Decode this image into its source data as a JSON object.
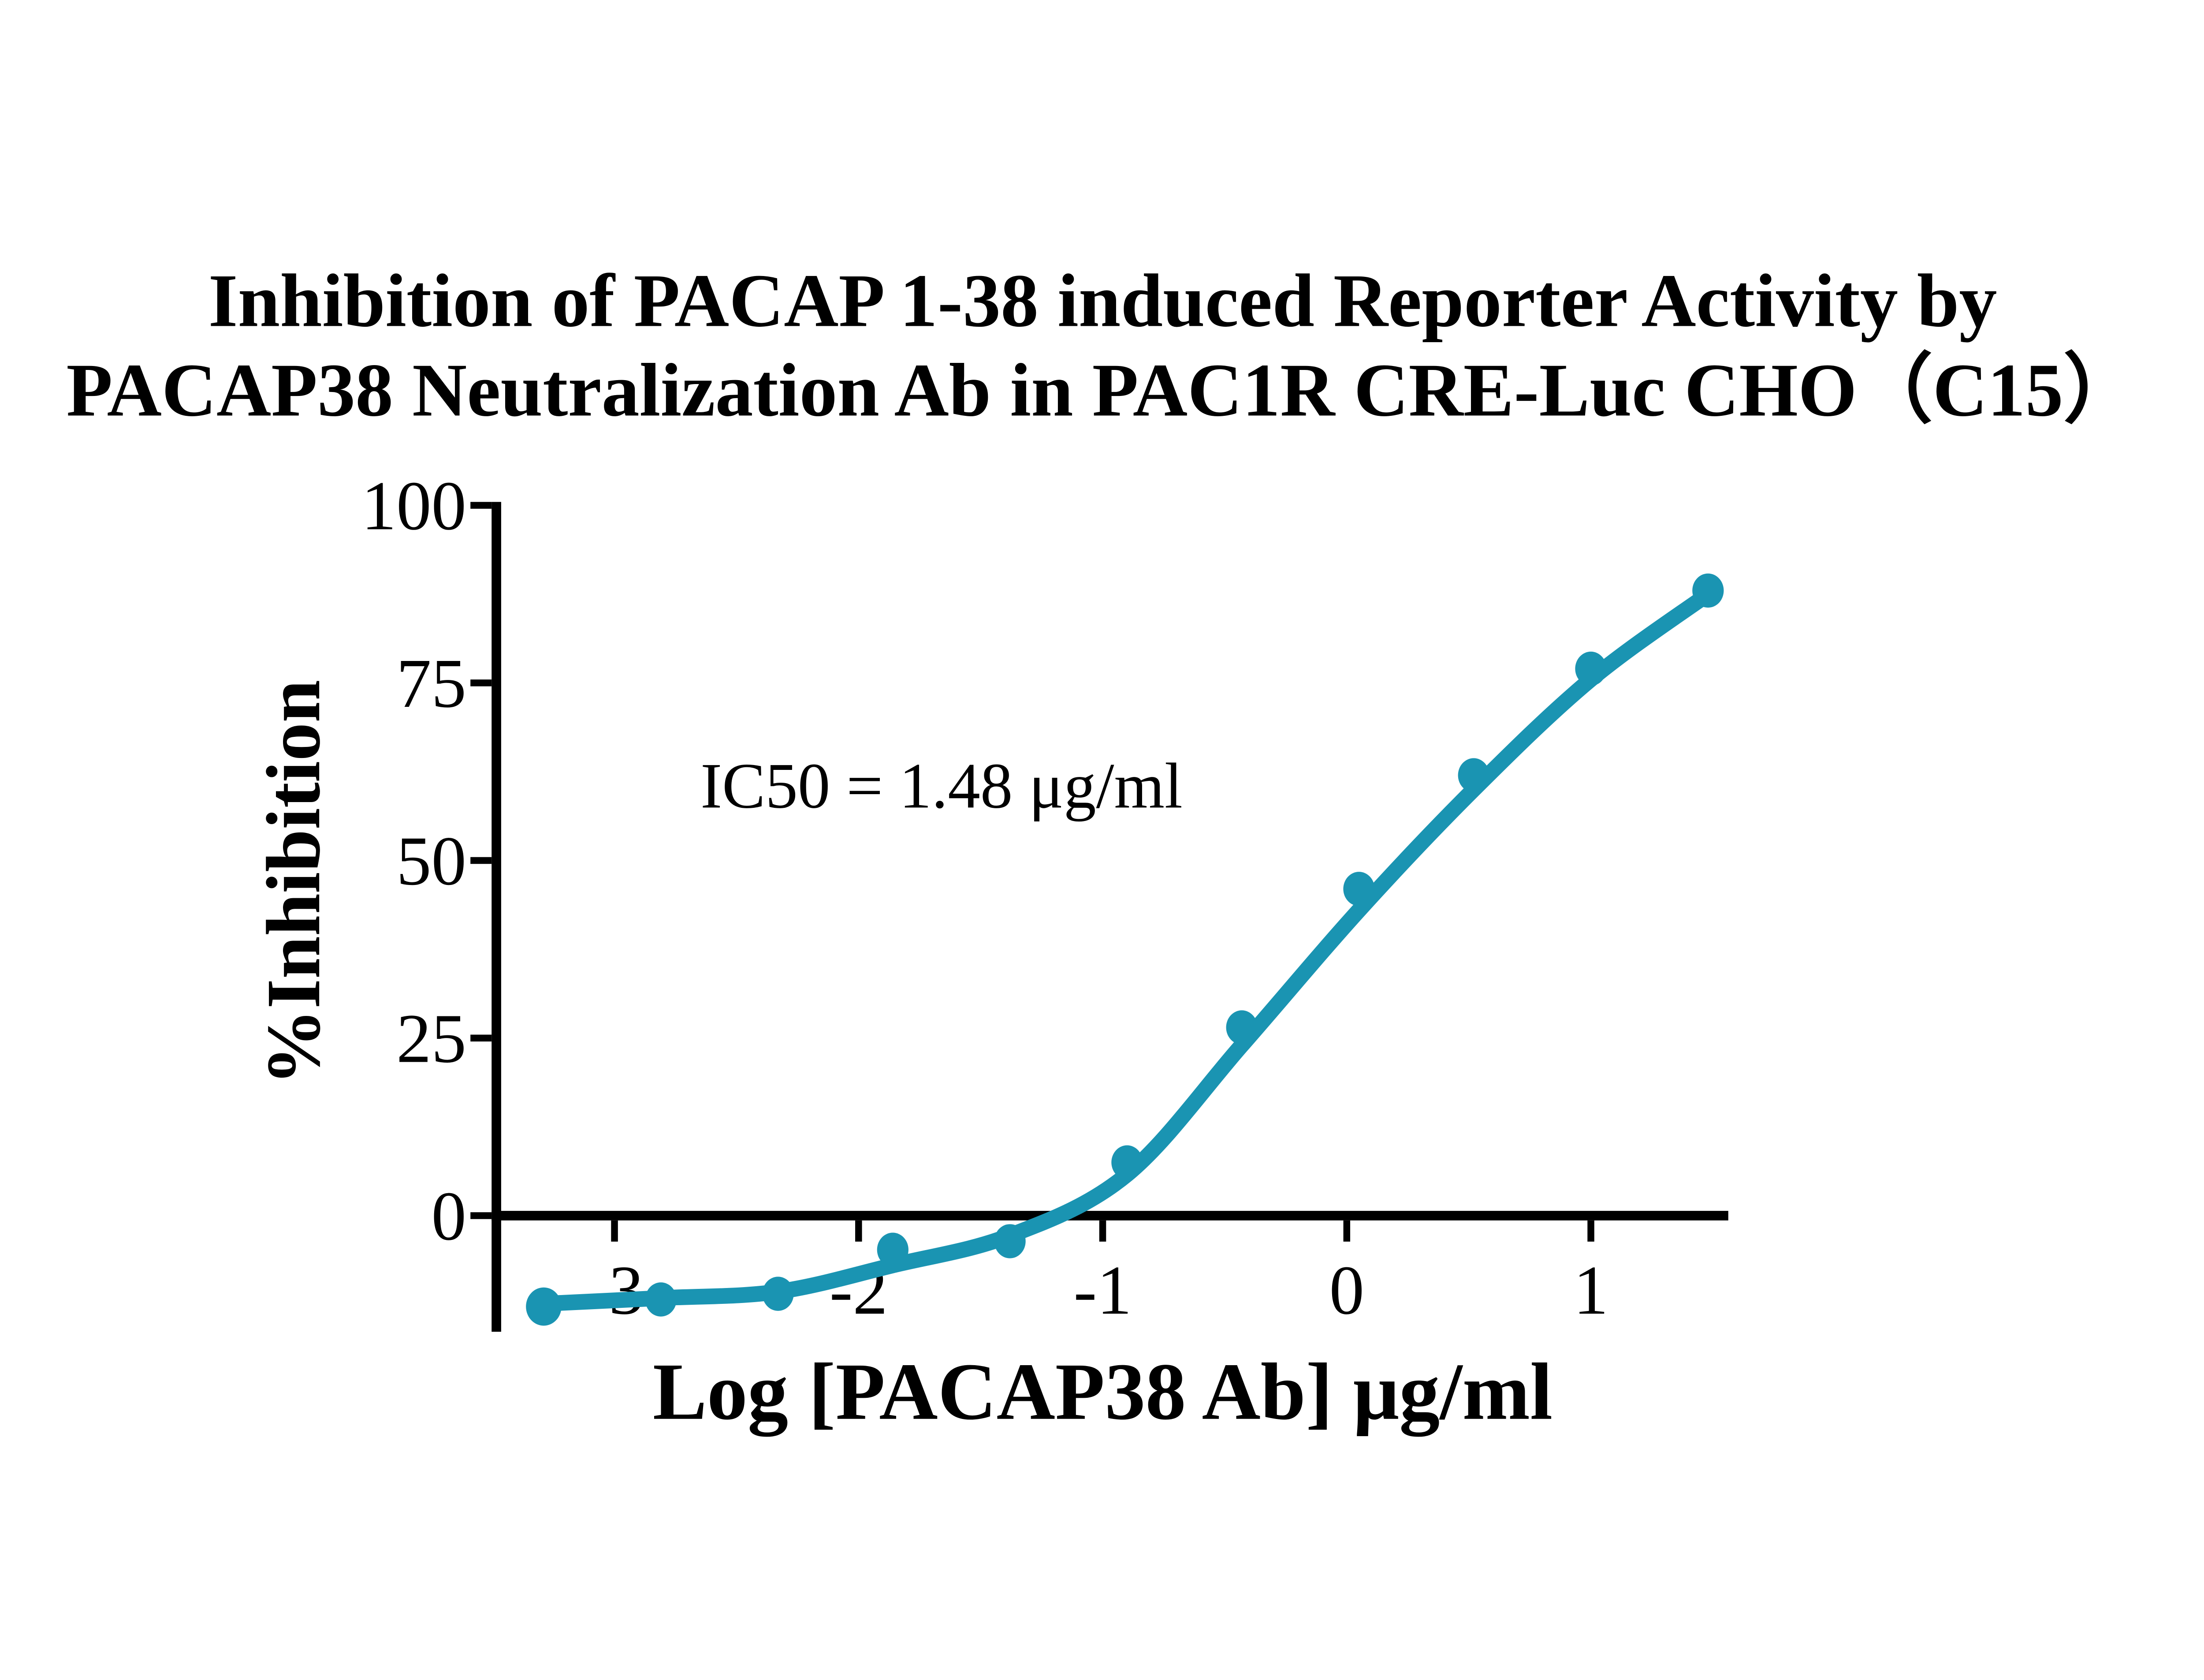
{
  "page": {
    "background_color": "#ffffff",
    "text_color": "#000000"
  },
  "chart_data": {
    "type": "scatter",
    "subtype": "dose-response-inhibition-curve",
    "title_line1": "Inhibition of PACAP 1-38 induced Reporter Activity by",
    "title_line2": "PACAP38 Neutralization Ab in PAC1R CRE-Luc CHO（C15）",
    "xlabel": "Log [PACAP38 Ab] μg/ml",
    "ylabel": "%Inhibition",
    "annotation": "IC50 = 1.48 μg/ml",
    "ic50_ug_ml": 1.48,
    "series_color": "#1a94b2",
    "axis_color": "#000000",
    "grid": false,
    "legend": "none",
    "x_ticks": [
      -3,
      -2,
      -1,
      0,
      1
    ],
    "y_ticks": [
      0,
      25,
      50,
      75,
      100
    ],
    "x_axis_range": [
      -3.48,
      1.5
    ],
    "y_axis_range": [
      -15,
      100
    ],
    "points": [
      {
        "x": -3.29,
        "y": -12.8
      },
      {
        "x": -2.81,
        "y": -11.8
      },
      {
        "x": -2.33,
        "y": -11.0
      },
      {
        "x": -1.86,
        "y": -4.8
      },
      {
        "x": -1.38,
        "y": -3.6
      },
      {
        "x": -0.9,
        "y": 7.5
      },
      {
        "x": -0.43,
        "y": 26.5
      },
      {
        "x": 0.05,
        "y": 46.0
      },
      {
        "x": 0.52,
        "y": 62.0
      },
      {
        "x": 1.0,
        "y": 77.0
      },
      {
        "x": 1.48,
        "y": 88.0
      }
    ],
    "fit_curve": {
      "model": "sigmoidal dose-response (fitted)",
      "anchors": [
        {
          "x": -3.29,
          "y": -12.4
        },
        {
          "x": -2.81,
          "y": -11.6
        },
        {
          "x": -2.33,
          "y": -10.7
        },
        {
          "x": -1.86,
          "y": -7.0
        },
        {
          "x": -1.38,
          "y": -2.8
        },
        {
          "x": -0.9,
          "y": 5.8
        },
        {
          "x": -0.43,
          "y": 24.0
        },
        {
          "x": 0.05,
          "y": 43.0
        },
        {
          "x": 0.52,
          "y": 60.0
        },
        {
          "x": 1.0,
          "y": 75.5
        },
        {
          "x": 1.48,
          "y": 87.5
        }
      ]
    }
  }
}
